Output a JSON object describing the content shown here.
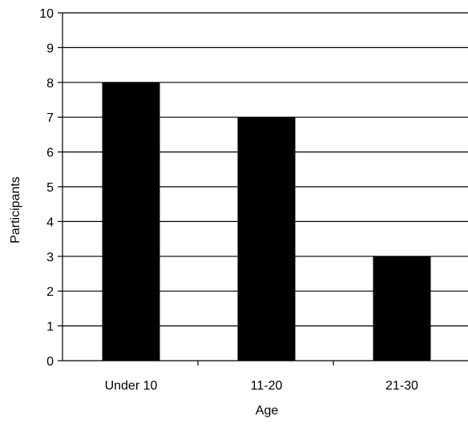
{
  "chart_data": {
    "type": "bar",
    "categories": [
      "Under 10",
      "11-20",
      "21-30"
    ],
    "values": [
      8,
      7,
      3
    ],
    "xlabel": "Age",
    "ylabel": "Participants",
    "ylim": [
      0,
      10
    ],
    "yticks": [
      "0",
      "1",
      "2",
      "3",
      "4",
      "5",
      "6",
      "7",
      "8",
      "9",
      "10"
    ],
    "grid": true,
    "legend": "none",
    "bar_color": "#000000",
    "grid_color": "#000000"
  }
}
